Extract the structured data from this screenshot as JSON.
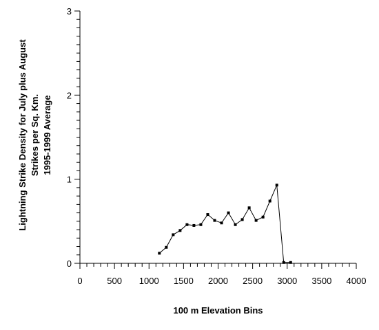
{
  "chart_data": {
    "type": "line",
    "title": "",
    "xlabel": "100 m Elevation Bins",
    "ylabel_lines": [
      "Lightning Strike Density for July plus August",
      "Strikes per Sq. Km.",
      "1995-1999 Average"
    ],
    "xlim": [
      0,
      4000
    ],
    "ylim": [
      0,
      3
    ],
    "x_ticks": [
      0,
      500,
      1000,
      1500,
      2000,
      2500,
      3000,
      3500,
      4000
    ],
    "x_tick_labels": [
      "0",
      "500",
      "1000",
      "1500",
      "2000",
      "2500",
      "3000",
      "3500",
      "4000"
    ],
    "x_minor_step": 100,
    "y_ticks": [
      0,
      1,
      2,
      3
    ],
    "y_tick_labels": [
      "0",
      "1",
      "2",
      "3"
    ],
    "y_minor_step": 0.1,
    "grid": false,
    "marker": "square",
    "color": "#000000",
    "series": [
      {
        "x": [
          1150,
          1250,
          1350,
          1450,
          1550,
          1650,
          1750,
          1850,
          1950,
          2050,
          2150,
          2250,
          2350,
          2450,
          2550,
          2650,
          2750,
          2850,
          2950,
          3050
        ],
        "y": [
          0.12,
          0.19,
          0.34,
          0.39,
          0.46,
          0.45,
          0.46,
          0.58,
          0.51,
          0.48,
          0.6,
          0.46,
          0.52,
          0.66,
          0.51,
          0.55,
          0.74,
          0.93,
          0.01,
          0.01
        ]
      }
    ]
  }
}
